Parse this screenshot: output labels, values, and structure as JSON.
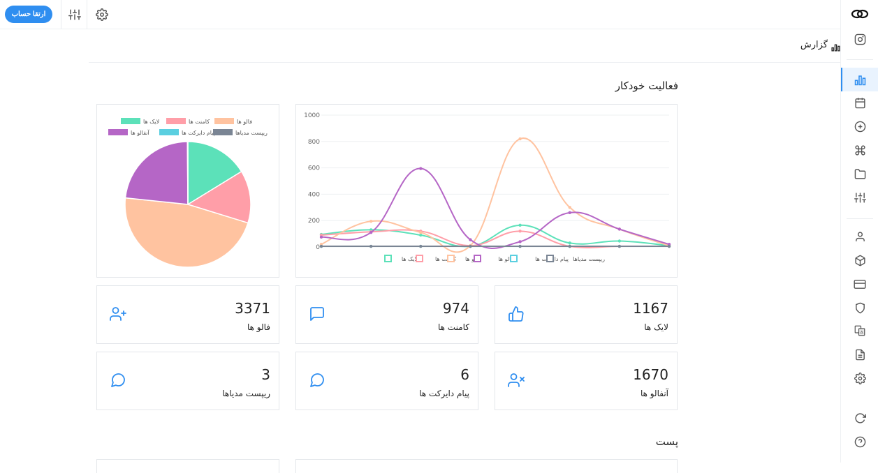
{
  "topbar": {
    "upgrade_label": "ارتقا حساب",
    "icons": [
      "settings-icon",
      "sliders-icon"
    ]
  },
  "breadcrumb": {
    "label": "گزارش"
  },
  "sections": {
    "activity_title": "فعالیت خودکار",
    "post_title": "پست"
  },
  "stats": [
    {
      "label": "لایک ها",
      "value": "1167",
      "icon": "thumbs-up-icon"
    },
    {
      "label": "کامنت ها",
      "value": "974",
      "icon": "comment-icon"
    },
    {
      "label": "فالو ها",
      "value": "3371",
      "icon": "user-plus-icon"
    },
    {
      "label": "آنفالو ها",
      "value": "1670",
      "icon": "user-x-icon"
    },
    {
      "label": "پیام دایرکت ها",
      "value": "6",
      "icon": "message-circle-icon"
    },
    {
      "label": "ریپست مدیاها",
      "value": "3",
      "icon": "message-circle-icon"
    }
  ],
  "sidebar": {
    "items": [
      "logo-icon",
      "instagram-icon",
      "chart-icon",
      "calendar-icon",
      "plus-circle-icon",
      "command-icon",
      "folder-icon",
      "sliders-icon",
      "user-icon",
      "package-icon",
      "credit-card-icon",
      "shield-icon",
      "translate-icon",
      "file-icon",
      "settings-icon",
      "refresh-icon",
      "help-icon"
    ],
    "active": "chart-icon"
  },
  "colors": {
    "accent": "#2f8ef0",
    "likes": "#5ce1b9",
    "comments": "#ff9ea8",
    "follows": "#ffc3a0",
    "unfollows": "#b566c6",
    "directs": "#5bcfe0",
    "reposts": "#7a8594"
  },
  "chart_data": [
    {
      "type": "line",
      "ylim": [
        0,
        1000
      ],
      "yticks": [
        "0",
        "200",
        "400",
        "600",
        "800",
        "1000"
      ],
      "x": [
        1,
        2,
        3,
        4,
        5,
        6,
        7,
        8
      ],
      "series": [
        {
          "name": "لایک ها",
          "color": "#5ce1b9",
          "values": [
            95,
            130,
            90,
            5,
            165,
            30,
            45,
            10
          ]
        },
        {
          "name": "کامنت ها",
          "color": "#ff9ea8",
          "values": [
            90,
            115,
            120,
            10,
            120,
            5,
            5,
            5
          ]
        },
        {
          "name": "فالو ها",
          "color": "#ffc3a0",
          "values": [
            20,
            195,
            110,
            10,
            820,
            300,
            135,
            10
          ]
        },
        {
          "name": "آنفالو ها",
          "color": "#b566c6",
          "values": [
            75,
            110,
            595,
            55,
            40,
            260,
            135,
            20
          ]
        },
        {
          "name": "پیام دایرکت ها",
          "color": "#5bcfe0",
          "values": [
            5,
            5,
            5,
            5,
            5,
            5,
            5,
            5
          ]
        },
        {
          "name": "ریپست مدیاها",
          "color": "#7a8594",
          "values": [
            5,
            5,
            5,
            5,
            5,
            5,
            5,
            5
          ]
        }
      ]
    },
    {
      "type": "pie",
      "legend": [
        "لایک ها",
        "کامنت ها",
        "فالو ها",
        "آنفالو ها",
        "پیام دایرکت ها",
        "ریپست مدیاها"
      ],
      "values": [
        1167,
        974,
        3371,
        1670,
        6,
        3
      ],
      "colors": [
        "#5ce1b9",
        "#ff9ea8",
        "#ffc3a0",
        "#b566c6",
        "#5bcfe0",
        "#7a8594"
      ]
    }
  ]
}
